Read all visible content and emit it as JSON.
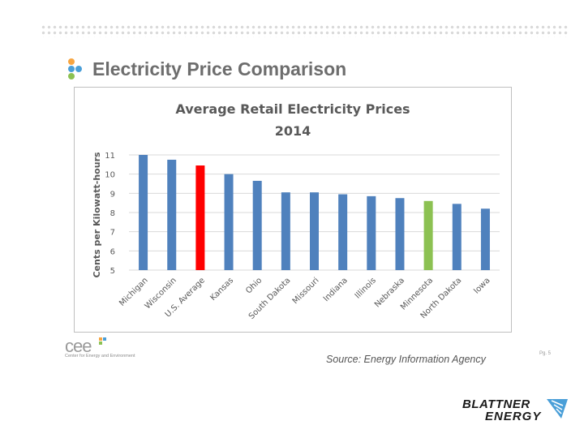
{
  "slide": {
    "title": "Electricity Price Comparison",
    "source": "Source: Energy Information Agency",
    "page_number": "Pg. 5"
  },
  "logos": {
    "cee_word": "cee",
    "cee_subtitle": "Center for Energy and Environment",
    "brand_line1": "BLATTNER",
    "brand_line2": "ENERGY"
  },
  "colors": {
    "bar_default": "#4f81bd",
    "bar_us_average": "#ff0000",
    "bar_minnesota": "#8cc152",
    "gridline": "#d9d9d9",
    "title_text": "#595959",
    "brand_accent": "#4a9fd8"
  },
  "chart_data": {
    "type": "bar",
    "title": "Average Retail Electricity Prices",
    "subtitle": "2014",
    "xlabel": "",
    "ylabel": "Cents per Kilowatt-hours",
    "ylim": [
      5,
      11
    ],
    "yticks": [
      "5",
      "6",
      "7",
      "8",
      "9",
      "10",
      "11"
    ],
    "grid": true,
    "categories": [
      "Michigan",
      "Wisconsin",
      "U.S. Average",
      "Kansas",
      "Ohio",
      "South Dakota",
      "Missouri",
      "Indiana",
      "Illinois",
      "Nebraska",
      "Minnesota",
      "North Dakota",
      "Iowa"
    ],
    "values": [
      11.0,
      10.75,
      10.45,
      10.0,
      9.65,
      9.05,
      9.05,
      8.95,
      8.85,
      8.75,
      8.6,
      8.45,
      8.2
    ],
    "bar_colors": [
      "#4f81bd",
      "#4f81bd",
      "#ff0000",
      "#4f81bd",
      "#4f81bd",
      "#4f81bd",
      "#4f81bd",
      "#4f81bd",
      "#4f81bd",
      "#4f81bd",
      "#8cc152",
      "#4f81bd",
      "#4f81bd"
    ]
  }
}
